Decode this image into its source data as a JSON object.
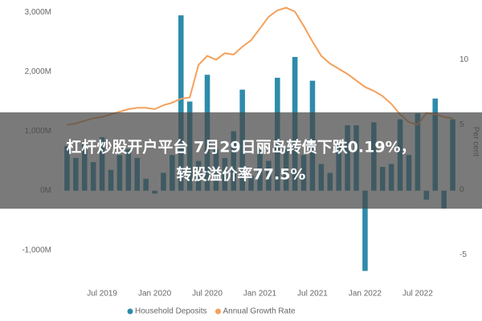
{
  "chart_data": {
    "type": "bar-line",
    "categories": [
      null,
      null,
      null,
      null,
      "Jul 2019",
      null,
      null,
      null,
      null,
      null,
      "Jan 2020",
      null,
      null,
      null,
      null,
      null,
      "Jul 2020",
      null,
      null,
      null,
      null,
      null,
      "Jan 2021",
      null,
      null,
      null,
      null,
      null,
      "Jul 2021",
      null,
      null,
      null,
      null,
      null,
      "Jan 2022",
      null,
      null,
      null,
      null,
      null,
      "Jul 2022",
      null,
      null,
      null,
      null
    ],
    "series": [
      {
        "name": "Household Deposits",
        "color": "#2e8bab",
        "type": "bar",
        "values": [
          750,
          550,
          820,
          480,
          900,
          350,
          600,
          700,
          550,
          200,
          -50,
          300,
          600,
          2950,
          1500,
          500,
          1950,
          700,
          550,
          1000,
          1700,
          250,
          700,
          500,
          1900,
          700,
          2250,
          600,
          1850,
          450,
          300,
          800,
          1100,
          1100,
          -1350,
          1150,
          400,
          450,
          1200,
          600,
          1300,
          -150,
          1550,
          -300,
          1200
        ]
      },
      {
        "name": "Annual Growth Rate",
        "color": "#f5a05a",
        "type": "line",
        "axis": "y2",
        "values": [
          5.0,
          5.1,
          5.3,
          5.5,
          5.6,
          5.8,
          6.0,
          6.2,
          6.3,
          6.3,
          6.2,
          6.5,
          6.7,
          7.0,
          7.1,
          9.6,
          10.3,
          10.0,
          10.5,
          10.4,
          11.0,
          11.5,
          12.4,
          13.3,
          13.8,
          14.0,
          13.7,
          12.6,
          11.4,
          10.3,
          9.7,
          9.3,
          8.9,
          8.4,
          7.9,
          7.6,
          7.2,
          6.6,
          5.8,
          5.2,
          5.0,
          5.9,
          5.8,
          5.6,
          5.5
        ]
      }
    ],
    "ylim": [
      -1450,
      3100
    ],
    "yticks": [
      {
        "value": 3000,
        "label": "3,000M"
      },
      {
        "value": 2000,
        "label": "2,000M"
      },
      {
        "value": 1000,
        "label": "1,000M"
      },
      {
        "value": 0,
        "label": "0M"
      },
      {
        "value": -1000,
        "label": "-1,000M"
      }
    ],
    "y2lim": [
      -6.7,
      14.1
    ],
    "y2ticks": [
      10,
      5,
      0,
      -5
    ],
    "y2_label": "Per cent",
    "grid": false,
    "legend": "bottom"
  },
  "banner": {
    "lines": [
      "杠杆炒股开户平台 7月29日丽岛转债下跌0.19%，",
      "转股溢价率77.5%"
    ]
  }
}
